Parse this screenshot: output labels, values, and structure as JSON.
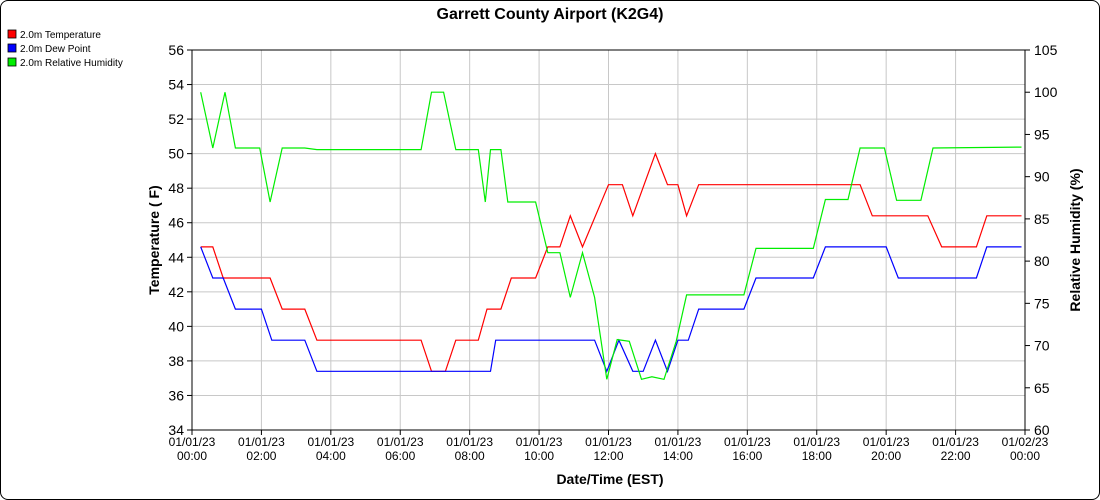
{
  "chart_data": {
    "type": "line",
    "title": "Garrett County Airport (K2G4)",
    "xlabel": "Date/Time (EST)",
    "ylabel_left": "Temperature ( F)",
    "ylabel_right": "Relative Humidity (%)",
    "ylim_left": [
      34,
      56
    ],
    "ylim_right": [
      60,
      105
    ],
    "yticks_left": [
      "34",
      "36",
      "38",
      "40",
      "42",
      "44",
      "46",
      "48",
      "50",
      "52",
      "54",
      "56"
    ],
    "yticks_right": [
      "60",
      "65",
      "70",
      "75",
      "80",
      "85",
      "90",
      "95",
      "100",
      "105"
    ],
    "x_range_hours": [
      0,
      24
    ],
    "xticks": [
      {
        "date": "01/01/23",
        "time": "00:00"
      },
      {
        "date": "01/01/23",
        "time": "02:00"
      },
      {
        "date": "01/01/23",
        "time": "04:00"
      },
      {
        "date": "01/01/23",
        "time": "06:00"
      },
      {
        "date": "01/01/23",
        "time": "08:00"
      },
      {
        "date": "01/01/23",
        "time": "10:00"
      },
      {
        "date": "01/01/23",
        "time": "12:00"
      },
      {
        "date": "01/01/23",
        "time": "14:00"
      },
      {
        "date": "01/01/23",
        "time": "16:00"
      },
      {
        "date": "01/01/23",
        "time": "18:00"
      },
      {
        "date": "01/01/23",
        "time": "20:00"
      },
      {
        "date": "01/01/23",
        "time": "22:00"
      },
      {
        "date": "01/02/23",
        "time": "00:00"
      }
    ],
    "grid": true,
    "legend_position": "top-left",
    "series": [
      {
        "name": "2.0m Temperature",
        "color": "#ff0000",
        "axis": "left",
        "points": [
          [
            0.25,
            44.6
          ],
          [
            0.6,
            44.6
          ],
          [
            0.9,
            42.8
          ],
          [
            2.25,
            42.8
          ],
          [
            2.6,
            41.0
          ],
          [
            3.25,
            41.0
          ],
          [
            3.6,
            39.2
          ],
          [
            6.6,
            39.2
          ],
          [
            6.9,
            37.4
          ],
          [
            7.3,
            37.4
          ],
          [
            7.6,
            39.2
          ],
          [
            8.25,
            39.2
          ],
          [
            8.5,
            41.0
          ],
          [
            8.9,
            41.0
          ],
          [
            9.2,
            42.8
          ],
          [
            9.9,
            42.8
          ],
          [
            10.25,
            44.6
          ],
          [
            10.6,
            44.6
          ],
          [
            10.9,
            46.4
          ],
          [
            11.25,
            44.6
          ],
          [
            12.0,
            48.2
          ],
          [
            12.4,
            48.2
          ],
          [
            12.7,
            46.4
          ],
          [
            13.35,
            50.0
          ],
          [
            13.7,
            48.2
          ],
          [
            14.0,
            48.2
          ],
          [
            14.25,
            46.4
          ],
          [
            14.6,
            48.2
          ],
          [
            19.25,
            48.2
          ],
          [
            19.6,
            46.4
          ],
          [
            21.2,
            46.4
          ],
          [
            21.6,
            44.6
          ],
          [
            22.6,
            44.6
          ],
          [
            22.9,
            46.4
          ],
          [
            23.9,
            46.4
          ]
        ]
      },
      {
        "name": "2.0m Dew Point",
        "color": "#0000ff",
        "axis": "left",
        "points": [
          [
            0.25,
            44.6
          ],
          [
            0.6,
            42.8
          ],
          [
            0.9,
            42.8
          ],
          [
            1.25,
            41.0
          ],
          [
            2.0,
            41.0
          ],
          [
            2.3,
            39.2
          ],
          [
            3.25,
            39.2
          ],
          [
            3.6,
            37.4
          ],
          [
            8.6,
            37.4
          ],
          [
            8.75,
            39.2
          ],
          [
            11.6,
            39.2
          ],
          [
            11.95,
            37.4
          ],
          [
            12.3,
            39.2
          ],
          [
            12.7,
            37.4
          ],
          [
            13.0,
            37.4
          ],
          [
            13.35,
            39.2
          ],
          [
            13.7,
            37.4
          ],
          [
            14.0,
            39.2
          ],
          [
            14.3,
            39.2
          ],
          [
            14.6,
            41.0
          ],
          [
            15.9,
            41.0
          ],
          [
            16.25,
            42.8
          ],
          [
            17.9,
            42.8
          ],
          [
            18.25,
            44.6
          ],
          [
            20.0,
            44.6
          ],
          [
            20.35,
            42.8
          ],
          [
            22.6,
            42.8
          ],
          [
            22.9,
            44.6
          ],
          [
            23.9,
            44.6
          ]
        ]
      },
      {
        "name": "2.0m Relative Humidity",
        "color": "#00ee00",
        "axis": "right",
        "points": [
          [
            0.25,
            100.0
          ],
          [
            0.6,
            93.4
          ],
          [
            0.95,
            100.0
          ],
          [
            1.25,
            93.4
          ],
          [
            1.95,
            93.4
          ],
          [
            2.25,
            87.0
          ],
          [
            2.6,
            93.4
          ],
          [
            3.25,
            93.4
          ],
          [
            3.6,
            93.2
          ],
          [
            6.6,
            93.2
          ],
          [
            6.9,
            100.0
          ],
          [
            7.25,
            100.0
          ],
          [
            7.6,
            93.2
          ],
          [
            8.25,
            93.2
          ],
          [
            8.45,
            87.0
          ],
          [
            8.6,
            93.2
          ],
          [
            8.9,
            93.2
          ],
          [
            9.1,
            87.0
          ],
          [
            9.9,
            87.0
          ],
          [
            10.25,
            81.0
          ],
          [
            10.6,
            81.0
          ],
          [
            10.9,
            75.7
          ],
          [
            11.25,
            81.0
          ],
          [
            11.6,
            75.7
          ],
          [
            11.95,
            66.0
          ],
          [
            12.25,
            70.7
          ],
          [
            12.6,
            70.5
          ],
          [
            12.95,
            66.0
          ],
          [
            13.25,
            66.3
          ],
          [
            13.6,
            66.0
          ],
          [
            13.95,
            70.5
          ],
          [
            14.25,
            76.0
          ],
          [
            15.9,
            76.0
          ],
          [
            16.25,
            81.5
          ],
          [
            17.9,
            81.5
          ],
          [
            18.25,
            87.3
          ],
          [
            18.9,
            87.3
          ],
          [
            19.25,
            93.4
          ],
          [
            19.95,
            93.4
          ],
          [
            20.3,
            87.2
          ],
          [
            21.0,
            87.2
          ],
          [
            21.35,
            93.4
          ],
          [
            23.9,
            93.5
          ]
        ]
      }
    ]
  }
}
